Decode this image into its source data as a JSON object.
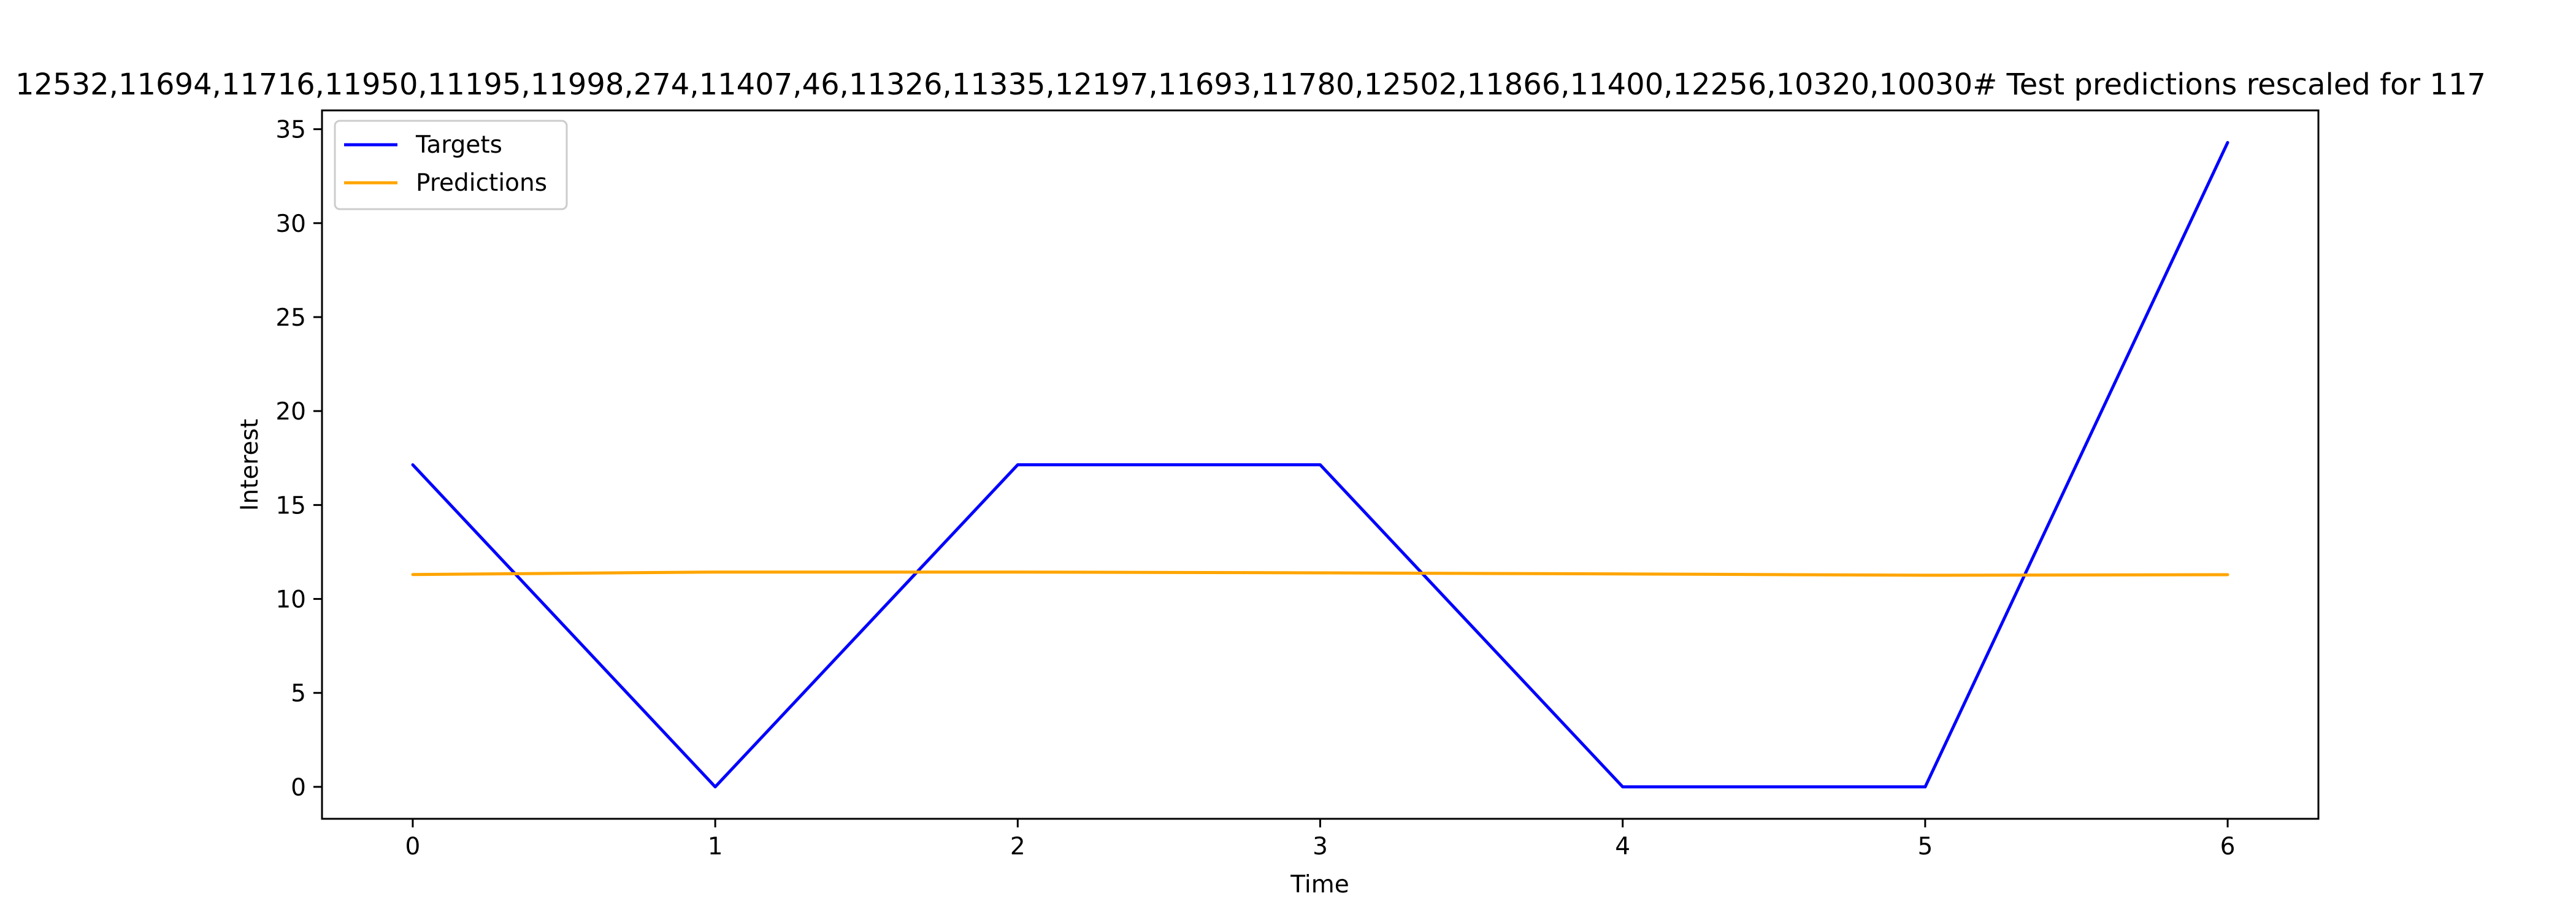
{
  "chart_data": {
    "type": "line",
    "title": "12532,11694,11716,11950,11195,11998,274,11407,46,11326,11335,12197,11693,11780,12502,11866,11400,12256,10320,10030# Test predictions rescaled for 117",
    "xlabel": "Time",
    "ylabel": "Interest",
    "x": [
      0,
      1,
      2,
      3,
      4,
      5,
      6
    ],
    "xlim": [
      -0.3,
      6.3
    ],
    "ylim": [
      -1.7,
      36.0
    ],
    "xticks": [
      0,
      1,
      2,
      3,
      4,
      5,
      6
    ],
    "yticks": [
      0,
      5,
      10,
      15,
      20,
      25,
      30,
      35
    ],
    "grid": false,
    "legend_position": "top-left",
    "series": [
      {
        "name": "Targets",
        "color": "#0000ff",
        "values": [
          17.14,
          0,
          17.14,
          17.14,
          0,
          0,
          34.29
        ]
      },
      {
        "name": "Predictions",
        "color": "#ffa500",
        "values": [
          11.3,
          11.43,
          11.43,
          11.39,
          11.33,
          11.26,
          11.29
        ]
      }
    ]
  }
}
